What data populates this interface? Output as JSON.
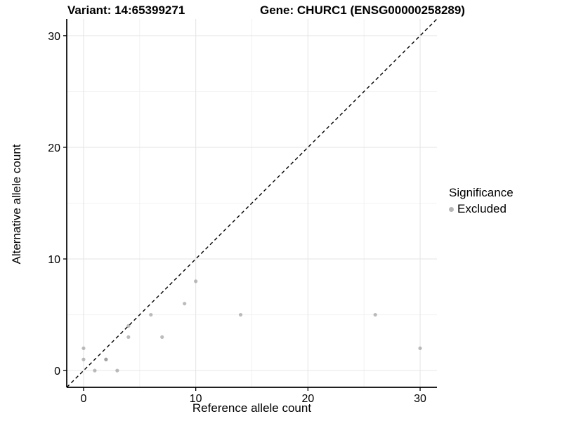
{
  "header": {
    "variant_title": "Variant: 14:65399271",
    "gene_title": "Gene: CHURC1 (ENSG00000258289)"
  },
  "legend": {
    "title": "Significance",
    "items": [
      {
        "label": "Excluded",
        "marker_color": "#b6b6b6"
      }
    ]
  },
  "colors": {
    "background": "#ffffff",
    "axis_line": "#000000",
    "tick_label": "#000000",
    "grid_major": "#e6e6e6",
    "grid_minor": "#f2f2f2",
    "identity_line": "#000000",
    "point": "#8f8f8f"
  },
  "chart_data": {
    "type": "scatter",
    "title_left": "Variant: 14:65399271",
    "title_right": "Gene: CHURC1 (ENSG00000258289)",
    "xlabel": "Reference allele count",
    "ylabel": "Alternative allele count",
    "xlim": [
      -1.5,
      31.5
    ],
    "ylim": [
      -1.5,
      31.5
    ],
    "x_ticks": [
      0,
      10,
      20,
      30
    ],
    "y_ticks": [
      0,
      10,
      20,
      30
    ],
    "x_minor_ticks": [
      5,
      15,
      25
    ],
    "y_minor_ticks": [
      5,
      15,
      25
    ],
    "grid": "major+minor",
    "legend_position": "right",
    "identity_line": {
      "equation": "y = x",
      "style": "dashed"
    },
    "point_opacity": 0.6,
    "point_radius": 2.6,
    "series": [
      {
        "name": "Excluded",
        "points": [
          [
            0,
            1
          ],
          [
            0,
            2
          ],
          [
            1,
            0
          ],
          [
            2,
            1
          ],
          [
            2,
            1
          ],
          [
            3,
            0
          ],
          [
            4,
            3
          ],
          [
            4,
            4
          ],
          [
            6,
            5
          ],
          [
            7,
            3
          ],
          [
            9,
            6
          ],
          [
            10,
            8
          ],
          [
            14,
            5
          ],
          [
            26,
            5
          ],
          [
            30,
            2
          ]
        ]
      }
    ]
  }
}
